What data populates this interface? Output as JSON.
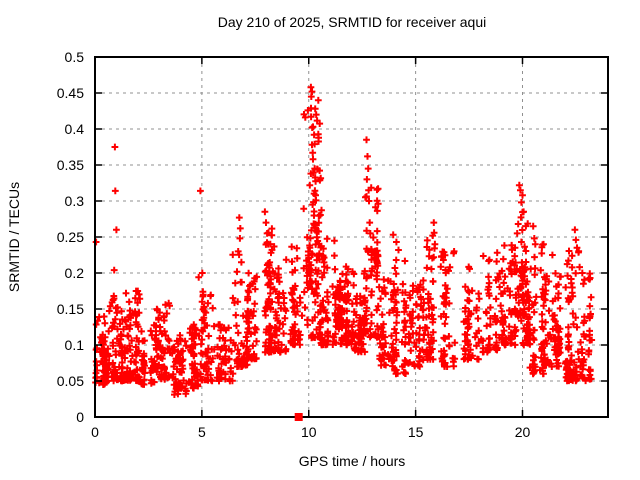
{
  "chart_data": {
    "type": "scatter",
    "title": "Day 210 of 2025, SRMTID for receiver aqui",
    "xlabel": "GPS time / hours",
    "ylabel": "SRMTID / TECUs",
    "xlim": [
      0,
      24
    ],
    "ylim": [
      0,
      0.5
    ],
    "grid": true,
    "legend": "none",
    "xticks": [
      {
        "v": 0,
        "label": "0"
      },
      {
        "v": 5,
        "label": "5"
      },
      {
        "v": 10,
        "label": "10"
      },
      {
        "v": 15,
        "label": "15"
      },
      {
        "v": 20,
        "label": "20"
      }
    ],
    "yticks": [
      {
        "v": 0,
        "label": "0"
      },
      {
        "v": 0.05,
        "label": "0.05"
      },
      {
        "v": 0.1,
        "label": "0.1"
      },
      {
        "v": 0.15,
        "label": "0.15"
      },
      {
        "v": 0.2,
        "label": "0.2"
      },
      {
        "v": 0.25,
        "label": "0.25"
      },
      {
        "v": 0.3,
        "label": "0.3"
      },
      {
        "v": 0.35,
        "label": "0.35"
      },
      {
        "v": 0.4,
        "label": "0.4"
      },
      {
        "v": 0.45,
        "label": "0.45"
      },
      {
        "v": 0.5,
        "label": "0.5"
      }
    ],
    "marker": "plus",
    "marker_color": "#ff0000",
    "grid_color": "#909090",
    "border_color": "#000000",
    "seed": 210,
    "series_name": "SRMTID",
    "dense_bands": [
      [
        0.0,
        0.5,
        55,
        0.045,
        0.145,
        1.6
      ],
      [
        0.5,
        1.0,
        45,
        0.05,
        0.165,
        1.6
      ],
      [
        1.0,
        1.6,
        60,
        0.05,
        0.155,
        1.5
      ],
      [
        1.6,
        2.2,
        55,
        0.05,
        0.175,
        1.8
      ],
      [
        2.2,
        2.9,
        55,
        0.045,
        0.13,
        1.4
      ],
      [
        2.9,
        3.5,
        55,
        0.05,
        0.16,
        1.7
      ],
      [
        3.5,
        4.3,
        60,
        0.03,
        0.115,
        1.3
      ],
      [
        4.3,
        5.0,
        55,
        0.04,
        0.13,
        1.4
      ],
      [
        5.0,
        5.6,
        45,
        0.05,
        0.175,
        1.7
      ],
      [
        5.6,
        6.4,
        50,
        0.05,
        0.145,
        1.5
      ],
      [
        6.4,
        7.1,
        50,
        0.07,
        0.26,
        2.2
      ],
      [
        7.1,
        7.8,
        50,
        0.08,
        0.2,
        1.8
      ],
      [
        7.8,
        8.4,
        50,
        0.09,
        0.27,
        2.0
      ],
      [
        8.0,
        8.35,
        20,
        0.15,
        0.22,
        1.0
      ],
      [
        8.4,
        9.1,
        50,
        0.09,
        0.22,
        1.7
      ],
      [
        9.1,
        9.7,
        45,
        0.1,
        0.24,
        1.7
      ],
      [
        9.7,
        10.6,
        90,
        0.11,
        0.44,
        1.9
      ],
      [
        9.9,
        10.5,
        30,
        0.17,
        0.26,
        1.0
      ],
      [
        10.6,
        11.2,
        50,
        0.1,
        0.25,
        1.8
      ],
      [
        11.1,
        11.7,
        35,
        0.125,
        0.185,
        1.0
      ],
      [
        11.2,
        12.1,
        80,
        0.1,
        0.21,
        1.4
      ],
      [
        12.1,
        12.6,
        45,
        0.09,
        0.17,
        1.4
      ],
      [
        12.6,
        13.3,
        60,
        0.11,
        0.33,
        1.9
      ],
      [
        12.9,
        13.3,
        25,
        0.19,
        0.235,
        1.0
      ],
      [
        13.3,
        14.0,
        55,
        0.07,
        0.2,
        1.6
      ],
      [
        14.0,
        14.6,
        45,
        0.06,
        0.23,
        2.0
      ],
      [
        14.6,
        15.4,
        55,
        0.07,
        0.185,
        1.5
      ],
      [
        15.4,
        16.2,
        55,
        0.08,
        0.26,
        2.0
      ],
      [
        16.2,
        17.1,
        55,
        0.07,
        0.23,
        1.8
      ],
      [
        17.1,
        18.0,
        55,
        0.08,
        0.21,
        1.7
      ],
      [
        18.0,
        18.9,
        55,
        0.09,
        0.23,
        1.6
      ],
      [
        18.9,
        19.6,
        50,
        0.1,
        0.24,
        1.5
      ],
      [
        19.0,
        20.2,
        40,
        0.13,
        0.21,
        1.0
      ],
      [
        19.6,
        20.3,
        60,
        0.1,
        0.3,
        1.7
      ],
      [
        20.3,
        21.0,
        55,
        0.06,
        0.25,
        1.8
      ],
      [
        21.0,
        21.9,
        60,
        0.07,
        0.2,
        1.5
      ],
      [
        21.5,
        21.85,
        25,
        0.085,
        0.125,
        1.0
      ],
      [
        21.9,
        22.7,
        60,
        0.05,
        0.24,
        1.7
      ],
      [
        22.05,
        22.55,
        25,
        0.055,
        0.08,
        1.0
      ],
      [
        22.7,
        23.3,
        40,
        0.05,
        0.2,
        1.6
      ]
    ],
    "outlier_points": [
      [
        0.05,
        0.243
      ],
      [
        0.93,
        0.375
      ],
      [
        0.95,
        0.314
      ],
      [
        1.0,
        0.26
      ],
      [
        0.9,
        0.204
      ],
      [
        0.88,
        0.168
      ],
      [
        1.45,
        0.172
      ],
      [
        2.0,
        0.175
      ],
      [
        3.3,
        0.156
      ],
      [
        4.93,
        0.314
      ],
      [
        4.85,
        0.194
      ],
      [
        5.02,
        0.2
      ],
      [
        5.05,
        0.174
      ],
      [
        6.75,
        0.277
      ],
      [
        6.8,
        0.262
      ],
      [
        6.78,
        0.248
      ],
      [
        6.7,
        0.23
      ],
      [
        6.85,
        0.215
      ],
      [
        7.95,
        0.285
      ],
      [
        8.0,
        0.27
      ],
      [
        8.05,
        0.255
      ],
      [
        8.1,
        0.24
      ],
      [
        10.1,
        0.458
      ],
      [
        10.15,
        0.452
      ],
      [
        10.12,
        0.445
      ],
      [
        10.3,
        0.428
      ],
      [
        10.35,
        0.42
      ],
      [
        10.2,
        0.403
      ],
      [
        10.25,
        0.392
      ],
      [
        10.15,
        0.378
      ],
      [
        10.2,
        0.358
      ],
      [
        10.28,
        0.345
      ],
      [
        10.1,
        0.338
      ],
      [
        10.05,
        0.322
      ],
      [
        10.32,
        0.308
      ],
      [
        10.18,
        0.295
      ],
      [
        12.7,
        0.385
      ],
      [
        12.75,
        0.362
      ],
      [
        12.78,
        0.345
      ],
      [
        12.72,
        0.33
      ],
      [
        12.8,
        0.315
      ],
      [
        12.82,
        0.3
      ],
      [
        12.85,
        0.27
      ],
      [
        12.88,
        0.255
      ],
      [
        13.95,
        0.253
      ],
      [
        14.1,
        0.243
      ],
      [
        14.2,
        0.232
      ],
      [
        15.85,
        0.27
      ],
      [
        15.8,
        0.252
      ],
      [
        15.9,
        0.24
      ],
      [
        16.8,
        0.23
      ],
      [
        19.85,
        0.322
      ],
      [
        19.9,
        0.315
      ],
      [
        20.0,
        0.308
      ],
      [
        19.95,
        0.298
      ],
      [
        20.05,
        0.285
      ],
      [
        19.8,
        0.268
      ],
      [
        19.75,
        0.255
      ],
      [
        20.5,
        0.265
      ],
      [
        20.55,
        0.248
      ],
      [
        20.6,
        0.24
      ],
      [
        21.4,
        0.225
      ],
      [
        22.45,
        0.26
      ],
      [
        22.5,
        0.246
      ],
      [
        22.55,
        0.235
      ],
      [
        22.8,
        0.2
      ],
      [
        22.85,
        0.185
      ]
    ],
    "flag_series": {
      "name": "flag",
      "marker": "filled-square",
      "color": "#ff0000",
      "points": [
        [
          9.53,
          0
        ]
      ]
    }
  }
}
